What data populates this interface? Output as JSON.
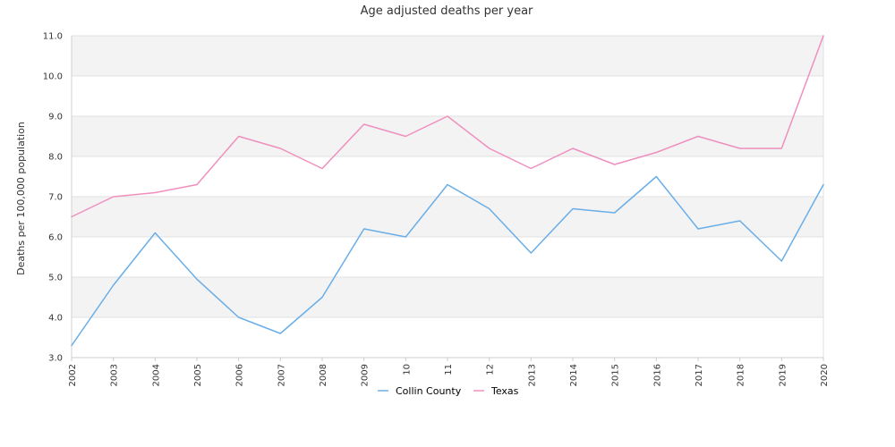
{
  "chart_data": {
    "type": "line",
    "title": "Age adjusted deaths per year",
    "xlabel": "",
    "ylabel": "Deaths per 100,000 population",
    "ylim": [
      3.0,
      11.0
    ],
    "y_ticks": [
      "3.0",
      "4.0",
      "5.0",
      "6.0",
      "7.0",
      "8.0",
      "9.0",
      "10.0",
      "11.0"
    ],
    "categories": [
      "2002",
      "2003",
      "2004",
      "2005",
      "2006",
      "2007",
      "2008",
      "2009",
      "10",
      "11",
      "12",
      "2013",
      "2014",
      "2015",
      "2016",
      "2017",
      "2018",
      "2019",
      "2020"
    ],
    "series": [
      {
        "name": "Collin County",
        "color": "#6aaee8",
        "values": [
          3.3,
          4.8,
          6.1,
          4.95,
          4.0,
          3.6,
          4.5,
          6.2,
          6.0,
          7.3,
          6.7,
          5.6,
          6.7,
          6.6,
          7.5,
          6.2,
          6.4,
          5.4,
          7.3
        ]
      },
      {
        "name": "Texas",
        "color": "#ef8fbd",
        "values": [
          6.5,
          7.0,
          7.1,
          7.3,
          8.5,
          8.2,
          7.7,
          8.8,
          8.5,
          9.0,
          8.2,
          7.7,
          8.2,
          7.8,
          8.1,
          8.5,
          8.2,
          8.2,
          11.0
        ]
      }
    ],
    "grid": true,
    "band_color": "#f3f3f3",
    "legend_position": "bottom-center"
  }
}
